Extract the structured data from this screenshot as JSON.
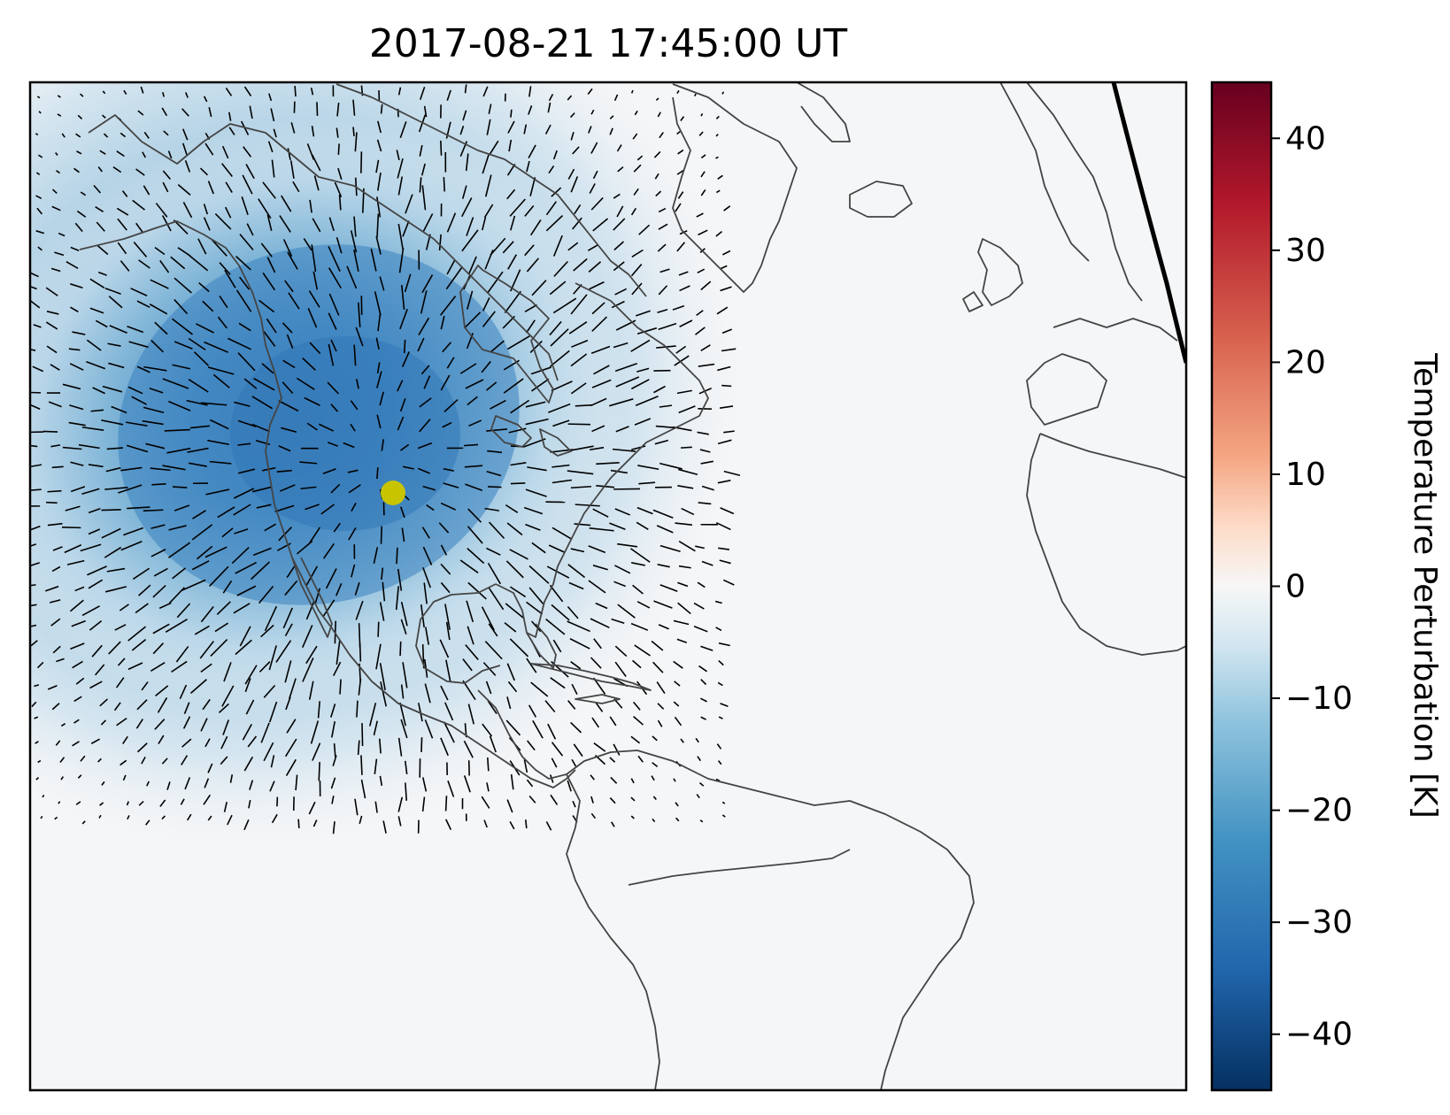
{
  "title": "2017-08-21 17:45:00 UT",
  "colorbar": {
    "label": "Temperature Perturbation [K]",
    "min": -45,
    "max": 45,
    "ticks": [
      40,
      30,
      20,
      10,
      0,
      -10,
      -20,
      -30,
      -40
    ],
    "tick_labels": [
      "40",
      "30",
      "20",
      "10",
      "0",
      "−10",
      "−20",
      "−30",
      "−40"
    ],
    "colormap": "RdBu_r"
  },
  "map": {
    "region": "North Atlantic, Americas, western Europe and Africa",
    "subsolar_marker_color": "#c8c400",
    "coastline_color": "#444444",
    "terminator_color": "#000000",
    "background_color": "#f5f6f7"
  },
  "chart_data": {
    "type": "heatmap",
    "title": "2017-08-21 17:45:00 UT",
    "zlabel": "Temperature Perturbation [K]",
    "zlim": [
      -45,
      45
    ],
    "min_value_approx": -35,
    "min_location": "central North America",
    "overlay": "wind vectors (quiver)",
    "marker": "eclipse center point"
  }
}
